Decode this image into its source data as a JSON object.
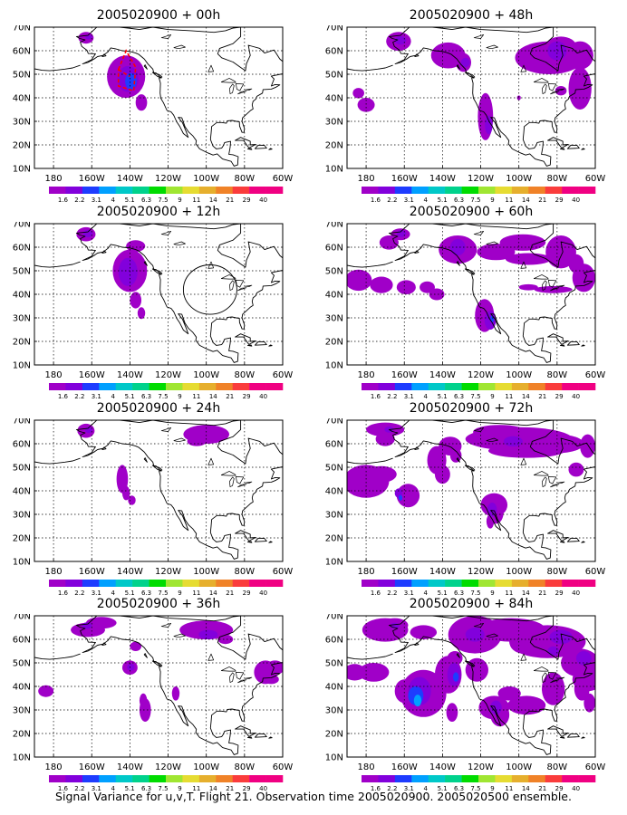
{
  "caption": "Signal Variance for u,v,T. Flight 21. Observation time 2005020900. 2005020500 ensemble.",
  "panels": [
    {
      "title": "2005020900 + 00h",
      "hour": "00h",
      "flight_track": true,
      "circle": false
    },
    {
      "title": "2005020900 + 48h",
      "hour": "48h",
      "flight_track": false,
      "circle": false
    },
    {
      "title": "2005020900 + 12h",
      "hour": "12h",
      "flight_track": false,
      "circle": true
    },
    {
      "title": "2005020900 + 60h",
      "hour": "60h",
      "flight_track": false,
      "circle": false
    },
    {
      "title": "2005020900 + 24h",
      "hour": "24h",
      "flight_track": false,
      "circle": false
    },
    {
      "title": "2005020900 + 72h",
      "hour": "72h",
      "flight_track": false,
      "circle": false
    },
    {
      "title": "2005020900 + 36h",
      "hour": "36h",
      "flight_track": false,
      "circle": false
    },
    {
      "title": "2005020900 + 84h",
      "hour": "84h",
      "flight_track": false,
      "circle": false
    }
  ],
  "axes": {
    "lat_labels": [
      "70N",
      "60N",
      "50N",
      "40N",
      "30N",
      "20N",
      "10N"
    ],
    "lon_labels": [
      "180",
      "160W",
      "140W",
      "120W",
      "100W",
      "80W",
      "60W"
    ],
    "lat_range": [
      10,
      70
    ],
    "lon_range": [
      -190,
      -60
    ],
    "grid": true
  },
  "colorbar": {
    "labels": [
      "1.6",
      "2.2",
      "3.1",
      "4",
      "5.1",
      "6.3",
      "7.5",
      "9",
      "11",
      "14",
      "21",
      "29",
      "40"
    ],
    "colors": [
      "#a000c8",
      "#8200dc",
      "#1e3cff",
      "#00a0ff",
      "#00c8c8",
      "#00d28c",
      "#00dc00",
      "#a0e632",
      "#e6dc32",
      "#e6af2d",
      "#f08228",
      "#fa3c3c",
      "#f00082"
    ]
  },
  "colors": {
    "level1": "#a000c8",
    "level2": "#8200dc",
    "level3": "#1e3cff",
    "level4": "#00a0ff",
    "track": "#ff0000"
  }
}
